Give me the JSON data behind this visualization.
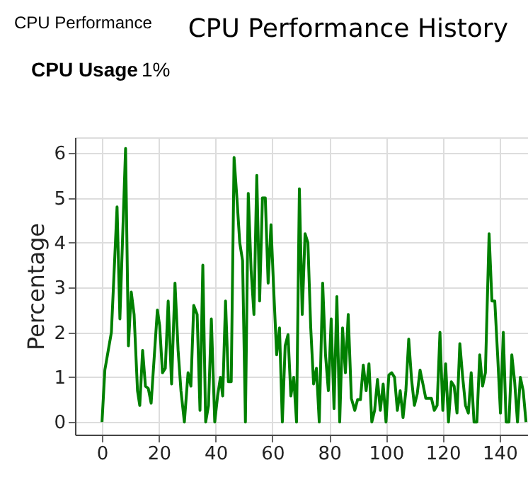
{
  "chart_data": {
    "type": "line",
    "title": "CPU Performance History",
    "ylabel": "Percentage",
    "annotations": [
      "CPU Performance",
      "CPU Usage",
      "1%"
    ],
    "x": [
      0,
      1,
      3.3,
      5.3,
      6.3,
      8.3,
      9.3,
      10.3,
      11.3,
      12.5,
      13.3,
      14.3,
      15.3,
      16.3,
      17.3,
      19.5,
      20.3,
      21.3,
      22.3,
      23.3,
      24.5,
      25.7,
      26.8,
      27.8,
      29,
      30.3,
      31.3,
      32.3,
      33.5,
      34.5,
      35.5,
      36.5,
      37.5,
      38.5,
      39.7,
      40.7,
      41.7,
      42.5,
      43.5,
      44.5,
      45.5,
      46.5,
      47.5,
      48.5,
      49.5,
      50.5,
      51.5,
      52.5,
      53.5,
      54.5,
      55.5,
      56.5,
      57.5,
      58.5,
      59.5,
      60.5,
      61.5,
      62.5,
      63.5,
      64.5,
      65.5,
      66.5,
      67.5,
      68.5,
      69.5,
      70.5,
      71.5,
      72.5,
      73.5,
      74.5,
      75.5,
      76.5,
      77.7,
      78.7,
      79.7,
      80.7,
      81.7,
      82.7,
      83.7,
      84.7,
      85.7,
      86.7,
      87.8,
      89,
      90,
      91,
      92,
      93,
      94,
      95,
      96,
      97,
      98,
      99,
      100,
      101,
      102,
      103,
      104,
      105,
      106,
      107,
      108,
      109,
      110,
      111,
      112,
      113,
      114,
      115,
      116,
      117,
      118,
      119,
      120,
      121,
      122,
      123,
      124,
      125,
      126,
      127,
      128,
      129,
      130,
      131,
      132,
      133,
      134,
      135,
      136.3,
      137.3,
      138.3,
      139.3,
      140.3,
      141.3,
      142.3,
      143.3,
      144.3,
      145.3,
      146.3,
      147.3,
      148.3,
      149.3
    ],
    "series": [
      {
        "color": "#008000",
        "values": [
          0,
          1.16,
          2.0,
          4.8,
          2.3,
          6.1,
          1.7,
          2.9,
          2.4,
          0.7,
          0.37,
          1.6,
          0.8,
          0.75,
          0.42,
          2.5,
          2.15,
          1.1,
          1.2,
          2.7,
          0.85,
          3.1,
          1.6,
          0.7,
          0,
          1.1,
          0.8,
          2.6,
          2.4,
          0.26,
          3.5,
          0,
          0.37,
          2.3,
          0,
          0.58,
          1.0,
          0.58,
          2.7,
          0.9,
          0.9,
          5.9,
          5.0,
          4.0,
          3.6,
          0,
          5.1,
          3.4,
          2.4,
          5.5,
          2.7,
          5.0,
          5.0,
          3.1,
          4.4,
          2.9,
          1.5,
          2.1,
          0,
          1.7,
          1.95,
          0.58,
          1.0,
          0,
          5.2,
          2.4,
          4.2,
          4.0,
          2.1,
          0.85,
          1.2,
          0,
          3.1,
          1.5,
          0.7,
          2.3,
          0.3,
          2.8,
          0,
          2.1,
          1.1,
          2.4,
          0.53,
          0.26,
          0.5,
          0.5,
          1.27,
          0.7,
          1.3,
          0,
          0.26,
          0.95,
          0.26,
          0.85,
          0,
          1.05,
          1.1,
          1.0,
          0.26,
          0.7,
          0.1,
          0.7,
          1.85,
          0.95,
          0.37,
          0.63,
          1.16,
          0.85,
          0.53,
          0.53,
          0.53,
          0.26,
          0.37,
          2.0,
          0.26,
          1.3,
          0,
          0.9,
          0.8,
          0.2,
          1.75,
          1.0,
          0.37,
          0.2,
          1.1,
          0,
          0,
          1.5,
          0.8,
          1.1,
          4.2,
          2.7,
          2.7,
          1.5,
          0.2,
          2.0,
          0,
          0,
          1.5,
          0.9,
          0,
          1.0,
          0.7,
          0
        ]
      }
    ],
    "xlim": [
      -9.5,
      150
    ],
    "ylim": [
      -0.28,
      6.35
    ],
    "xticks": [
      0,
      20,
      40,
      60,
      80,
      100,
      120,
      140
    ],
    "yticks": [
      0,
      1,
      2,
      3,
      4,
      5,
      6
    ],
    "grid": true,
    "marker": "none",
    "line_style": "solid"
  }
}
